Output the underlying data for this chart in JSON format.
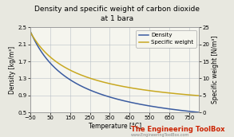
{
  "title_line1": "Density and specific weight of carbon dioxide",
  "title_line2": "at 1 bara",
  "xlabel": "Temperature [°C]",
  "ylabel_left": "Density [kg/m³]",
  "ylabel_right": "Specific weight [N/m³]",
  "xlim": [
    -50,
    800
  ],
  "ylim_left": [
    0.5,
    2.5
  ],
  "ylim_right": [
    0,
    25
  ],
  "xticks": [
    -50,
    50,
    150,
    250,
    350,
    450,
    550,
    650,
    750
  ],
  "yticks_left": [
    0.5,
    0.9,
    1.3,
    1.7,
    2.1,
    2.5
  ],
  "yticks_right": [
    0,
    5,
    10,
    15,
    20,
    25
  ],
  "density_color": "#3A5BA0",
  "specific_weight_color": "#C8A820",
  "bg_color": "#E8E8E0",
  "plot_bg_color": "#F5F5EE",
  "grid_color": "#B8C0C8",
  "legend_density": "Density",
  "legend_sw": "Specific weight",
  "watermark_text": "The Engineering ToolBox",
  "watermark_color": "#CC2200",
  "watermark_sub": "www.EngineeringToolBox.com",
  "title_fontsize": 6.5,
  "label_fontsize": 5.5,
  "tick_fontsize": 5.0,
  "legend_fontsize": 5.0,
  "line_width": 1.1
}
